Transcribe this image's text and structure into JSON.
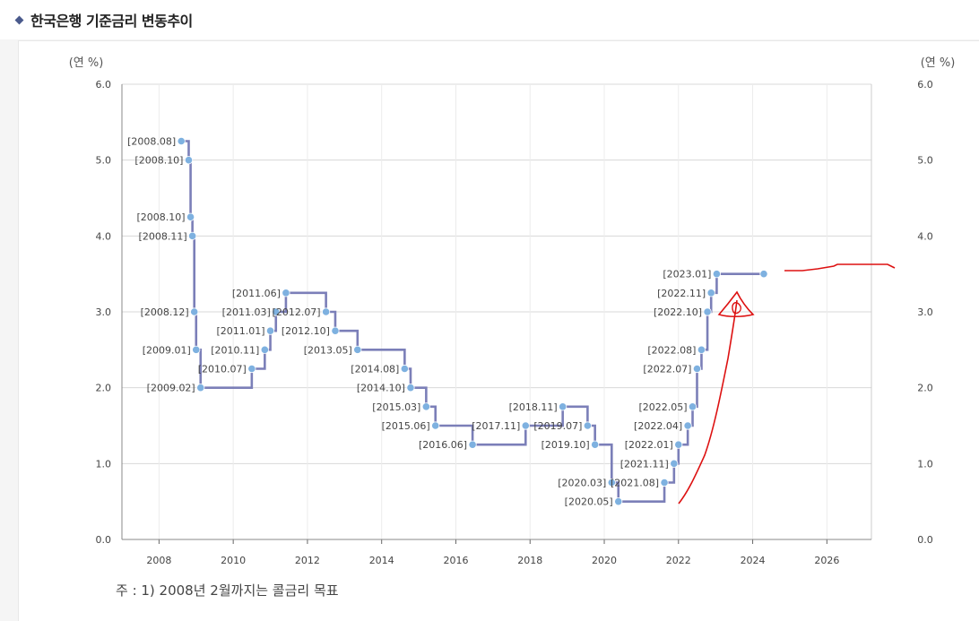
{
  "header": {
    "title": "한국은행 기준금리 변동추이"
  },
  "note": "주 : 1) 2008년 2월까지는 콜금리 목표",
  "colors": {
    "line": "#7b7fb8",
    "marker": "#7eb1e0",
    "grid": "#d8d8d8",
    "annotation": "#dd1111",
    "diamond": "#4a5a8c"
  },
  "chart_data": {
    "type": "line",
    "step": true,
    "title": "한국은행 기준금리 변동추이",
    "ylabel_left": "(연 %)",
    "ylabel_right": "(연 %)",
    "xlim": [
      2007,
      2027.2
    ],
    "ylim": [
      0,
      6
    ],
    "xticks": [
      "2008",
      "2010",
      "2012",
      "2014",
      "2016",
      "2018",
      "2020",
      "2022",
      "2024",
      "2026"
    ],
    "yticks": [
      "0.0",
      "1.0",
      "2.0",
      "3.0",
      "4.0",
      "5.0",
      "6.0"
    ],
    "grid": true,
    "points": [
      {
        "label": "[2008.08]",
        "x": 2008.6,
        "y": 5.25,
        "side": "left"
      },
      {
        "label": "[2008.10]",
        "x": 2008.8,
        "y": 5.0,
        "side": "left"
      },
      {
        "label": "[2008.10]",
        "x": 2008.85,
        "y": 4.25,
        "side": "left"
      },
      {
        "label": "[2008.11]",
        "x": 2008.9,
        "y": 4.0,
        "side": "left"
      },
      {
        "label": "[2008.12]",
        "x": 2008.95,
        "y": 3.0,
        "side": "left"
      },
      {
        "label": "[2009.01]",
        "x": 2009.0,
        "y": 2.5,
        "side": "left"
      },
      {
        "label": "[2009.02]",
        "x": 2009.12,
        "y": 2.0,
        "side": "left"
      },
      {
        "label": "[2010.07]",
        "x": 2010.5,
        "y": 2.25,
        "side": "left"
      },
      {
        "label": "[2010.11]",
        "x": 2010.85,
        "y": 2.5,
        "side": "left"
      },
      {
        "label": "[2011.01]",
        "x": 2011.0,
        "y": 2.75,
        "side": "left"
      },
      {
        "label": "[2011.03]",
        "x": 2011.15,
        "y": 3.0,
        "side": "left"
      },
      {
        "label": "[2011.06]",
        "x": 2011.42,
        "y": 3.25,
        "side": "left"
      },
      {
        "label": "[2012.07]",
        "x": 2012.5,
        "y": 3.0,
        "side": "left"
      },
      {
        "label": "[2012.10]",
        "x": 2012.75,
        "y": 2.75,
        "side": "left"
      },
      {
        "label": "[2013.05]",
        "x": 2013.35,
        "y": 2.5,
        "side": "left"
      },
      {
        "label": "[2014.08]",
        "x": 2014.62,
        "y": 2.25,
        "side": "left"
      },
      {
        "label": "[2014.10]",
        "x": 2014.78,
        "y": 2.0,
        "side": "left"
      },
      {
        "label": "[2015.03]",
        "x": 2015.2,
        "y": 1.75,
        "side": "left"
      },
      {
        "label": "[2015.06]",
        "x": 2015.45,
        "y": 1.5,
        "side": "left"
      },
      {
        "label": "[2016.06]",
        "x": 2016.45,
        "y": 1.25,
        "side": "left"
      },
      {
        "label": "[2017.11]",
        "x": 2017.88,
        "y": 1.5,
        "side": "left"
      },
      {
        "label": "[2018.11]",
        "x": 2018.88,
        "y": 1.75,
        "side": "left"
      },
      {
        "label": "[2019.07]",
        "x": 2019.55,
        "y": 1.5,
        "side": "left"
      },
      {
        "label": "[2019.10]",
        "x": 2019.75,
        "y": 1.25,
        "side": "left"
      },
      {
        "label": "[2020.03]",
        "x": 2020.2,
        "y": 0.75,
        "side": "left"
      },
      {
        "label": "[2020.05]",
        "x": 2020.38,
        "y": 0.5,
        "side": "left"
      },
      {
        "label": "[2021.08]",
        "x": 2021.62,
        "y": 0.75,
        "side": "left"
      },
      {
        "label": "[2021.11]",
        "x": 2021.88,
        "y": 1.0,
        "side": "left"
      },
      {
        "label": "[2022.01]",
        "x": 2022.0,
        "y": 1.25,
        "side": "left"
      },
      {
        "label": "[2022.04]",
        "x": 2022.25,
        "y": 1.5,
        "side": "left"
      },
      {
        "label": "[2022.05]",
        "x": 2022.38,
        "y": 1.75,
        "side": "left"
      },
      {
        "label": "[2022.07]",
        "x": 2022.5,
        "y": 2.25,
        "side": "left"
      },
      {
        "label": "[2022.08]",
        "x": 2022.62,
        "y": 2.5,
        "side": "left"
      },
      {
        "label": "[2022.10]",
        "x": 2022.78,
        "y": 3.0,
        "side": "left"
      },
      {
        "label": "[2022.11]",
        "x": 2022.88,
        "y": 3.25,
        "side": "left"
      },
      {
        "label": "[2023.01]",
        "x": 2023.03,
        "y": 3.5,
        "side": "left"
      },
      {
        "label": "",
        "x": 2024.3,
        "y": 3.5,
        "side": "none"
      }
    ]
  }
}
